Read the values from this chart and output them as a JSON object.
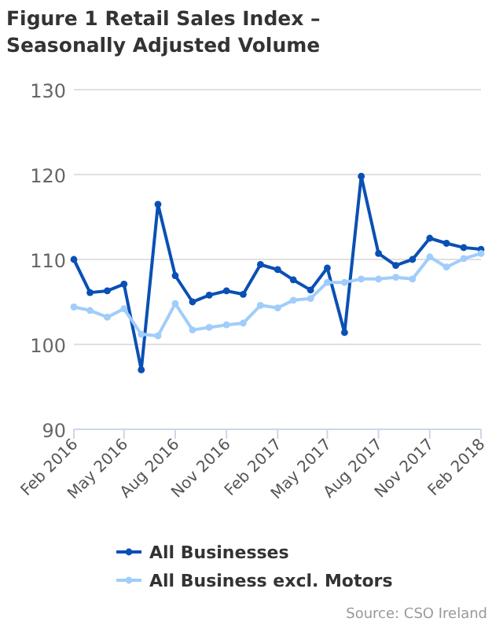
{
  "chart_data": {
    "type": "line",
    "title": "Figure 1 Retail Sales Index – Seasonally Adjusted Volume",
    "x": [
      "2016-02",
      "2016-03",
      "2016-04",
      "2016-05",
      "2016-06",
      "2016-07",
      "2016-08",
      "2016-09",
      "2016-10",
      "2016-11",
      "2016-12",
      "2017-01",
      "2017-02",
      "2017-03",
      "2017-04",
      "2017-05",
      "2017-06",
      "2017-07",
      "2017-08",
      "2017-09",
      "2017-10",
      "2017-11",
      "2017-12",
      "2018-01",
      "2018-02"
    ],
    "series": [
      {
        "name": "All Businesses",
        "color": "#0a50b4",
        "values": [
          110.0,
          106.1,
          106.3,
          107.1,
          97.0,
          116.5,
          108.1,
          105.0,
          105.8,
          106.3,
          105.9,
          109.4,
          108.8,
          107.6,
          106.4,
          109.0,
          101.4,
          119.8,
          110.7,
          109.3,
          110.0,
          112.5,
          111.9,
          111.4,
          111.2
        ]
      },
      {
        "name": "All Business excl. Motors",
        "color": "#a0cdfa",
        "values": [
          104.4,
          104.0,
          103.2,
          104.2,
          101.2,
          101.0,
          104.8,
          101.7,
          102.0,
          102.3,
          102.5,
          104.6,
          104.3,
          105.2,
          105.4,
          107.3,
          107.3,
          107.7,
          107.7,
          107.9,
          107.7,
          110.3,
          109.1,
          110.1,
          110.7
        ]
      }
    ],
    "xlim": [
      "2016-02",
      "2018-02"
    ],
    "xticks": [
      {
        "value": "2016-02",
        "label": "Feb 2016"
      },
      {
        "value": "2016-05",
        "label": "May 2016"
      },
      {
        "value": "2016-08",
        "label": "Aug 2016"
      },
      {
        "value": "2016-11",
        "label": "Nov 2016"
      },
      {
        "value": "2017-02",
        "label": "Feb 2017"
      },
      {
        "value": "2017-05",
        "label": "May 2017"
      },
      {
        "value": "2017-08",
        "label": "Aug 2017"
      },
      {
        "value": "2017-11",
        "label": "Nov 2017"
      },
      {
        "value": "2018-02",
        "label": "Feb 2018"
      }
    ],
    "ylim": [
      90,
      130
    ],
    "yticks": [
      90,
      100,
      110,
      120,
      130
    ],
    "grid": "y",
    "legend": "bottom",
    "marker": "circle",
    "line_style": "solid",
    "annotations": [
      "Source: CSO Ireland"
    ]
  }
}
